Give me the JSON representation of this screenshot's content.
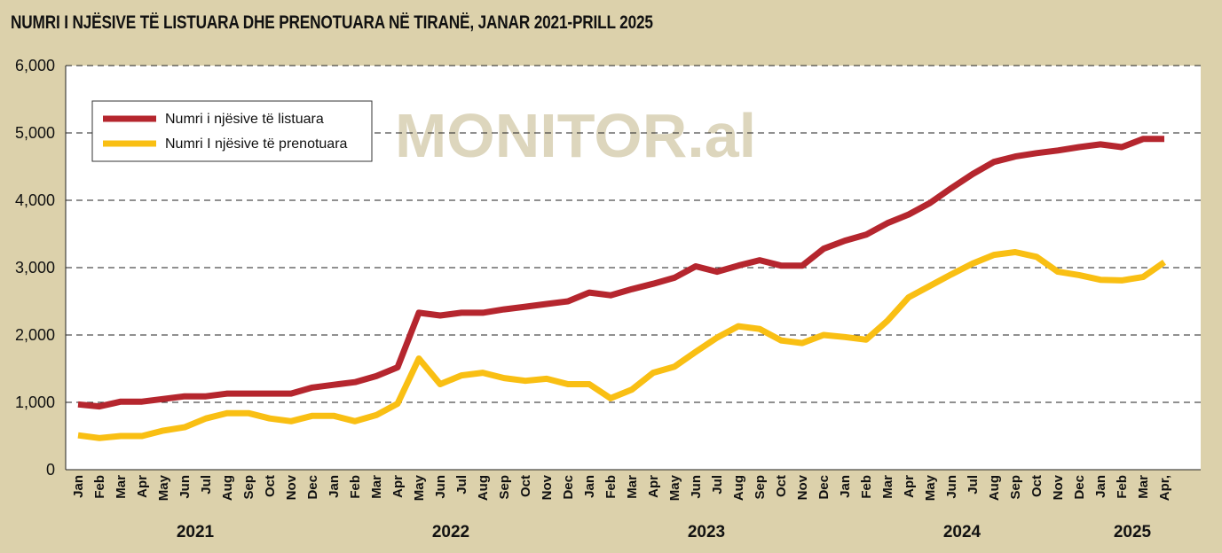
{
  "chart_data": {
    "type": "line",
    "title": "NUMRI I NJËSIVE TË LISTUARA DHE PRENOTUARA NË TIRANË, JANAR 2021-PRILL 2025",
    "watermark": "MONITOR.al",
    "ylim": [
      0,
      6000
    ],
    "yticks": [
      "0",
      "1,000",
      "2,000",
      "3,000",
      "4,000",
      "5,000",
      "6,000"
    ],
    "ytick_values": [
      0,
      1000,
      2000,
      3000,
      4000,
      5000,
      6000
    ],
    "grid": true,
    "legend_position": "top-left",
    "categories": [
      "Jan",
      "Feb",
      "Mar",
      "Apr",
      "May",
      "Jun",
      "Jul",
      "Aug",
      "Sep",
      "Oct",
      "Nov",
      "Dec",
      "Jan",
      "Feb",
      "Mar",
      "Apr",
      "May",
      "Jun",
      "Jul",
      "Aug",
      "Sep",
      "Oct",
      "Nov",
      "Dec",
      "Jan",
      "Feb",
      "Mar",
      "Apr",
      "May",
      "Jun",
      "Jul",
      "Aug",
      "Sep",
      "Oct",
      "Nov",
      "Dec",
      "Jan",
      "Feb",
      "Mar",
      "Apr",
      "May",
      "Jun",
      "Jul",
      "Aug",
      "Sep",
      "Oct",
      "Nov",
      "Dec",
      "Jan",
      "Feb",
      "Mar",
      "Apr,"
    ],
    "years": [
      {
        "label": "2021",
        "start": 0,
        "end": 11
      },
      {
        "label": "2022",
        "start": 12,
        "end": 23
      },
      {
        "label": "2023",
        "start": 24,
        "end": 35
      },
      {
        "label": "2024",
        "start": 36,
        "end": 47
      },
      {
        "label": "2025",
        "start": 48,
        "end": 51
      }
    ],
    "series": [
      {
        "name": "Numri i njësive të listuara",
        "color": "#b5262e",
        "values": [
          970,
          940,
          1010,
          1010,
          1050,
          1090,
          1090,
          1130,
          1130,
          1130,
          1130,
          1220,
          1260,
          1300,
          1390,
          1520,
          2330,
          2290,
          2330,
          2330,
          2380,
          2420,
          2460,
          2500,
          2630,
          2590,
          2680,
          2760,
          2850,
          3020,
          2940,
          3030,
          3110,
          3030,
          3030,
          3280,
          3400,
          3490,
          3660,
          3790,
          3960,
          4180,
          4390,
          4570,
          4650,
          4700,
          4740,
          4790,
          4830,
          4790,
          4910,
          4910
        ]
      },
      {
        "name": "Numri I njësive të prenotuara",
        "color": "#f9bf13",
        "values": [
          510,
          470,
          500,
          500,
          580,
          630,
          760,
          840,
          840,
          760,
          720,
          800,
          800,
          720,
          810,
          980,
          1650,
          1270,
          1400,
          1440,
          1360,
          1320,
          1350,
          1270,
          1270,
          1060,
          1190,
          1440,
          1530,
          1750,
          1960,
          2130,
          2090,
          1920,
          1880,
          2000,
          1970,
          1930,
          2210,
          2560,
          2730,
          2900,
          3060,
          3190,
          3230,
          3160,
          2940,
          2890,
          2820,
          2810,
          2860,
          3080
        ]
      }
    ]
  }
}
